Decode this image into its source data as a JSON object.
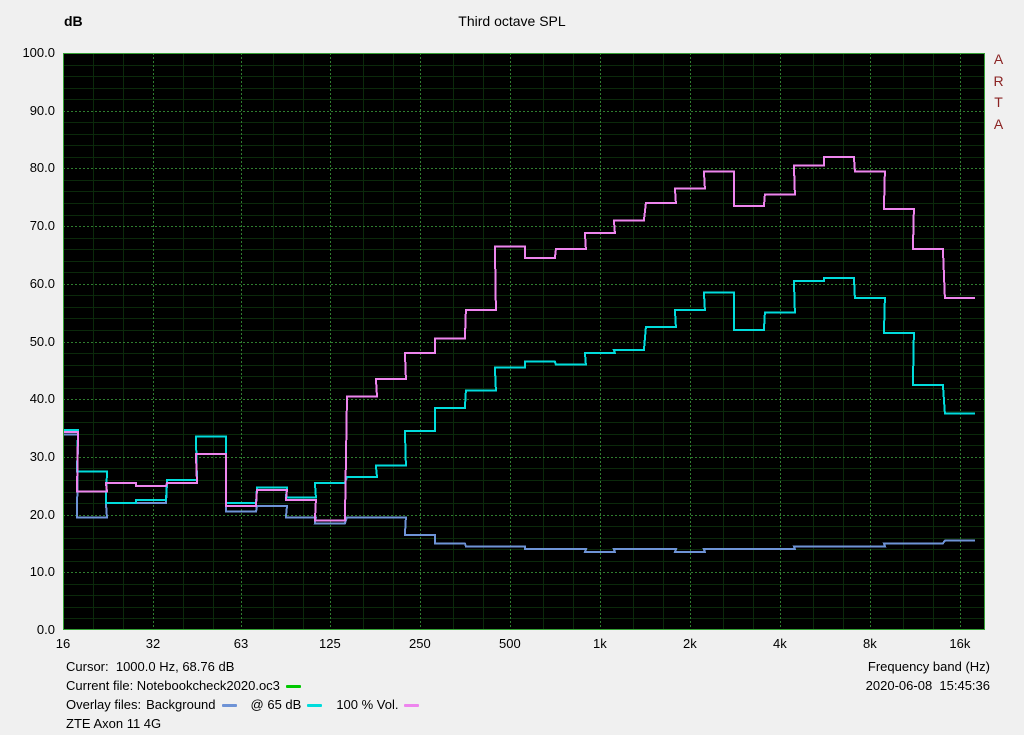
{
  "header": {
    "y_axis_unit": "dB",
    "title": "Third octave SPL",
    "watermark": "ARTA"
  },
  "footer": {
    "cursor": "Cursor:  1000.0 Hz, 68.76 dB",
    "frequency_band_label": "Frequency band (Hz)",
    "current_file": "Current file: Notebookcheck2020.oc3",
    "datetime": "2020-06-08  15:45:36",
    "overlay_label": "Overlay files:",
    "overlay_background": "Background",
    "overlay_65db": "@ 65 dB",
    "overlay_vol": "100 % Vol.",
    "device": "ZTE Axon 11 4G"
  },
  "legend_marker_colors": {
    "current_file": "#00c800",
    "background": "#6e93d6",
    "at_65db": "#00dcdc",
    "vol_100": "#ee85ee"
  },
  "chart_data": {
    "type": "line",
    "subtype": "third-octave-step-spl",
    "title": "Third octave SPL",
    "xlabel": "Frequency band (Hz)",
    "ylabel": "dB",
    "ylim": [
      0,
      100
    ],
    "y_tick_step": 10,
    "y_tick_labels": [
      "100.0",
      "90.0",
      "80.0",
      "70.0",
      "60.0",
      "50.0",
      "40.0",
      "30.0",
      "20.0",
      "10.0",
      "0.0"
    ],
    "x_ticks": [
      {
        "label": "16",
        "hz": 16
      },
      {
        "label": "32",
        "hz": 32
      },
      {
        "label": "63",
        "hz": 63
      },
      {
        "label": "125",
        "hz": 125
      },
      {
        "label": "250",
        "hz": 250
      },
      {
        "label": "500",
        "hz": 500
      },
      {
        "label": "1k",
        "hz": 1000
      },
      {
        "label": "2k",
        "hz": 2000
      },
      {
        "label": "4k",
        "hz": 4000
      },
      {
        "label": "8k",
        "hz": 8000
      },
      {
        "label": "16k",
        "hz": 16000
      }
    ],
    "grid": "on",
    "legend_position": "bottom-left",
    "cursor": {
      "hz": 1000.0,
      "db": 68.76
    },
    "frequencies_hz": [
      16,
      20,
      25,
      31.5,
      40,
      50,
      63,
      80,
      100,
      125,
      160,
      200,
      250,
      315,
      400,
      500,
      630,
      800,
      1000,
      1250,
      1600,
      2000,
      2500,
      3150,
      4000,
      5000,
      6300,
      8000,
      10000,
      12500,
      16000
    ],
    "series": [
      {
        "name": "Background",
        "color": "#6e93d6",
        "values": [
          33.9,
          19.5,
          22,
          22,
          25.5,
          30.5,
          20.5,
          21.5,
          19.5,
          18.5,
          19.5,
          19.5,
          16.5,
          15,
          14.5,
          14.5,
          14,
          14,
          13.5,
          14,
          14,
          13.5,
          14,
          14,
          14,
          14.5,
          14.5,
          14.5,
          15,
          15,
          15.5
        ]
      },
      {
        "name": "@ 65 dB",
        "color": "#00dcdc",
        "values": [
          34.7,
          27.5,
          22,
          22.5,
          26,
          33.5,
          22,
          24.7,
          23,
          25.5,
          26.5,
          28.5,
          34.5,
          38.5,
          41.5,
          45.5,
          46.5,
          46,
          48,
          48.5,
          52.5,
          55.5,
          58.5,
          52,
          55,
          60.5,
          61,
          57.5,
          51.5,
          42.5,
          37.5
        ]
      },
      {
        "name": "100 % Vol.",
        "color": "#ee85ee",
        "values": [
          34.3,
          24,
          25.5,
          25,
          25.5,
          30.5,
          21.5,
          24.3,
          22.5,
          19,
          40.5,
          43.5,
          48,
          50.5,
          55.5,
          66.5,
          64.5,
          66,
          68.8,
          71,
          74,
          76.5,
          79.5,
          73.5,
          75.5,
          80.5,
          82,
          79.5,
          73,
          66,
          57.5
        ]
      }
    ],
    "plot_colors": {
      "background": "#000000",
      "grid_minor": "#0b290b",
      "grid_major": "#2f7d2f",
      "frame": "#35a035"
    }
  }
}
